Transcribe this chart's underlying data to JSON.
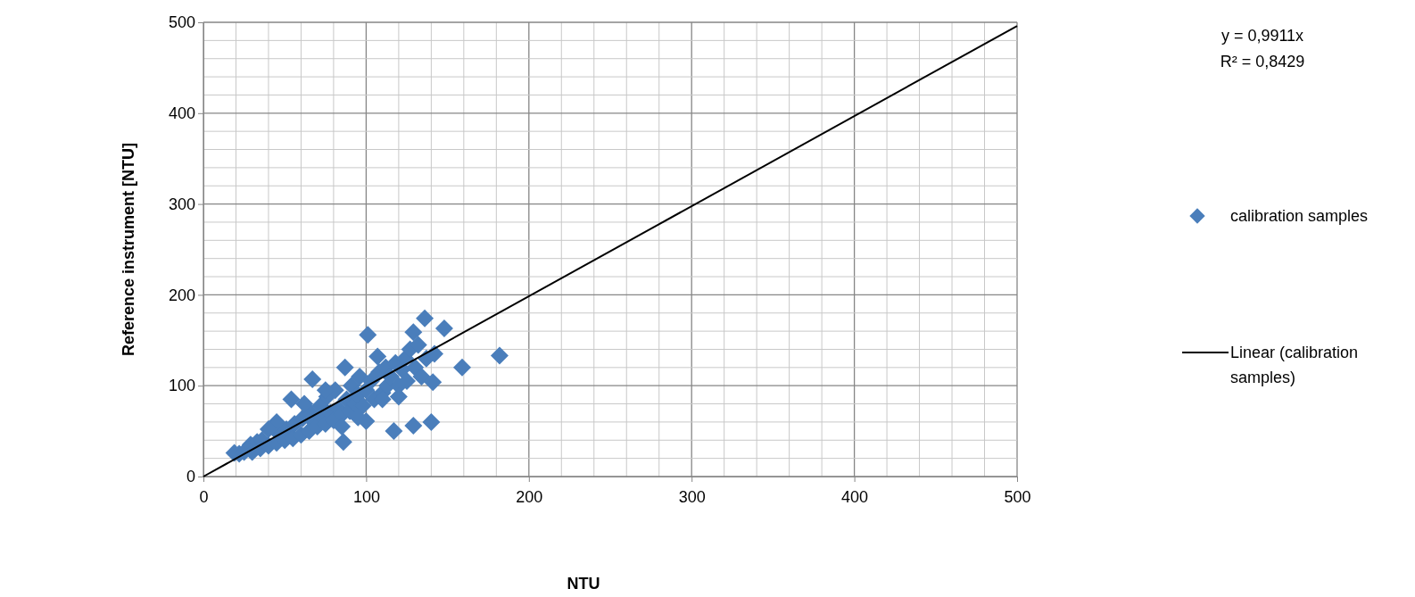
{
  "chart_data": {
    "type": "scatter",
    "xlabel": "NTU",
    "ylabel": "Reference instrument [NTU]",
    "xlim": [
      0,
      500
    ],
    "ylim": [
      0,
      500
    ],
    "xticks": [
      0,
      {
        "value": 20,
        "label": null
      },
      {
        "value": 40,
        "label": null
      },
      {
        "value": 60,
        "label": null
      },
      {
        "value": 80,
        "label": null
      },
      100,
      {
        "value": 120,
        "label": null
      },
      {
        "value": 140,
        "label": null
      },
      {
        "value": 160,
        "label": null
      },
      {
        "value": 180,
        "label": null
      },
      200,
      {
        "value": 220,
        "label": null
      },
      {
        "value": 240,
        "label": null
      },
      {
        "value": 260,
        "label": null
      },
      {
        "value": 280,
        "label": null
      },
      300,
      {
        "value": 320,
        "label": null
      },
      {
        "value": 340,
        "label": null
      },
      {
        "value": 360,
        "label": null
      },
      {
        "value": 380,
        "label": null
      },
      400,
      {
        "value": 420,
        "label": null
      },
      {
        "value": 440,
        "label": null
      },
      {
        "value": 460,
        "label": null
      },
      {
        "value": 480,
        "label": null
      },
      500
    ],
    "yticks": [
      0,
      {
        "value": 20,
        "label": null
      },
      {
        "value": 40,
        "label": null
      },
      {
        "value": 60,
        "label": null
      },
      {
        "value": 80,
        "label": null
      },
      100,
      {
        "value": 120,
        "label": null
      },
      {
        "value": 140,
        "label": null
      },
      {
        "value": 160,
        "label": null
      },
      {
        "value": 180,
        "label": null
      },
      200,
      {
        "value": 220,
        "label": null
      },
      {
        "value": 240,
        "label": null
      },
      {
        "value": 260,
        "label": null
      },
      {
        "value": 280,
        "label": null
      },
      300,
      {
        "value": 320,
        "label": null
      },
      {
        "value": 340,
        "label": null
      },
      {
        "value": 360,
        "label": null
      },
      {
        "value": 380,
        "label": null
      },
      400,
      {
        "value": 420,
        "label": null
      },
      {
        "value": 440,
        "label": null
      },
      {
        "value": 460,
        "label": null
      },
      {
        "value": 480,
        "label": null
      },
      500
    ],
    "grid": true,
    "legend": "right",
    "marker": "diamond",
    "annotations": [
      "y = 0,9911x",
      "R² = 0,8429"
    ],
    "series": [
      {
        "name": "calibration samples",
        "color": "#4a7ebb",
        "x": [
          19,
          22,
          25,
          29,
          30,
          33,
          35,
          36,
          40,
          45,
          46,
          50,
          51,
          54,
          55,
          56,
          60,
          61,
          65,
          66,
          67,
          68,
          70,
          72,
          73,
          75,
          76,
          78,
          80,
          81,
          83,
          85,
          86,
          87,
          88,
          90,
          91,
          93,
          95,
          96,
          98,
          100,
          100,
          101,
          103,
          105,
          107,
          108,
          110,
          112,
          113,
          115,
          117,
          118,
          120,
          122,
          124,
          125,
          127,
          129,
          129,
          130,
          132,
          134,
          136,
          137,
          140,
          141,
          142,
          148,
          159,
          182,
          85,
          95,
          110,
          120,
          75,
          62,
          45,
          40
        ],
        "values": [
          26,
          25,
          27,
          35,
          27,
          38,
          31,
          40,
          34,
          37,
          48,
          40,
          52,
          85,
          42,
          58,
          46,
          64,
          50,
          70,
          107,
          60,
          55,
          78,
          65,
          58,
          88,
          70,
          62,
          95,
          75,
          68,
          38,
          120,
          85,
          72,
          100,
          80,
          90,
          110,
          78,
          95,
          61,
          156,
          105,
          85,
          132,
          115,
          92,
          120,
          100,
          110,
          50,
          125,
          100,
          118,
          130,
          105,
          140,
          159,
          56,
          120,
          145,
          110,
          174,
          130,
          60,
          104,
          135,
          163,
          120,
          133,
          55,
          65,
          85,
          88,
          95,
          80,
          60,
          52
        ]
      },
      {
        "name": "Linear (calibration samples)",
        "type": "line",
        "color": "#000000",
        "line_style": "solid",
        "marker": "none",
        "x": [
          0,
          500
        ],
        "values": [
          0,
          496
        ]
      }
    ]
  }
}
